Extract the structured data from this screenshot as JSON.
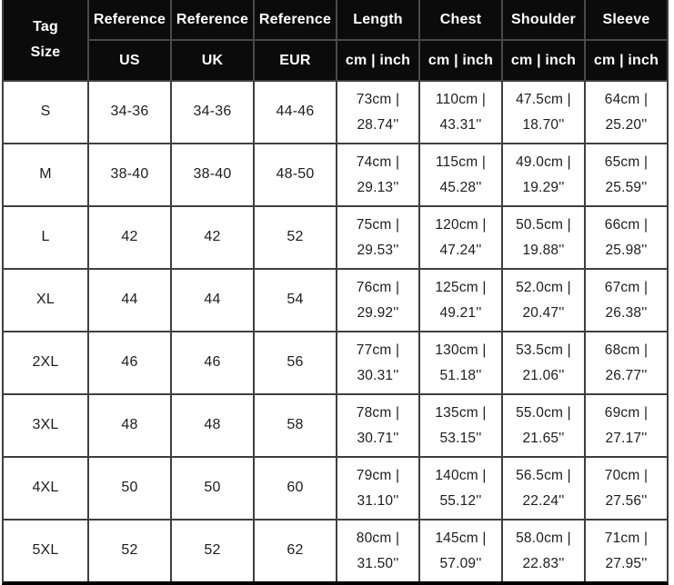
{
  "chart_data": {
    "type": "table",
    "columns": [
      "Tag Size",
      "Reference US",
      "Reference UK",
      "Reference EUR",
      "Length cm | inch",
      "Chest cm | inch",
      "Shoulder cm | inch",
      "Sleeve cm | inch"
    ],
    "row_keys": [
      "size",
      "us",
      "uk",
      "eur",
      "length",
      "chest",
      "shoulder",
      "sleeve"
    ],
    "header": {
      "tag_size": "Tag\nSize",
      "groups": [
        {
          "top": "Reference",
          "bottom": "US"
        },
        {
          "top": "Reference",
          "bottom": "UK"
        },
        {
          "top": "Reference",
          "bottom": "EUR"
        },
        {
          "top": "Length",
          "bottom": "cm | inch"
        },
        {
          "top": "Chest",
          "bottom": "cm | inch"
        },
        {
          "top": "Shoulder",
          "bottom": "cm | inch"
        },
        {
          "top": "Sleeve",
          "bottom": "cm | inch"
        }
      ]
    },
    "rows": [
      {
        "size": "S",
        "us": "34-36",
        "uk": "34-36",
        "eur": "44-46",
        "length": "73cm |\n28.74''",
        "chest": "110cm |\n43.31''",
        "shoulder": "47.5cm |\n18.70''",
        "sleeve": "64cm |\n25.20''"
      },
      {
        "size": "M",
        "us": "38-40",
        "uk": "38-40",
        "eur": "48-50",
        "length": "74cm |\n29.13''",
        "chest": "115cm |\n45.28''",
        "shoulder": "49.0cm |\n19.29''",
        "sleeve": "65cm |\n25.59''"
      },
      {
        "size": "L",
        "us": "42",
        "uk": "42",
        "eur": "52",
        "length": "75cm |\n29.53''",
        "chest": "120cm |\n47.24''",
        "shoulder": "50.5cm |\n19.88''",
        "sleeve": "66cm |\n25.98''"
      },
      {
        "size": "XL",
        "us": "44",
        "uk": "44",
        "eur": "54",
        "length": "76cm |\n29.92''",
        "chest": "125cm |\n49.21''",
        "shoulder": "52.0cm |\n20.47''",
        "sleeve": "67cm |\n26.38''"
      },
      {
        "size": "2XL",
        "us": "46",
        "uk": "46",
        "eur": "56",
        "length": "77cm |\n30.31''",
        "chest": "130cm |\n51.18''",
        "shoulder": "53.5cm |\n21.06''",
        "sleeve": "68cm |\n26.77''"
      },
      {
        "size": "3XL",
        "us": "48",
        "uk": "48",
        "eur": "58",
        "length": "78cm |\n30.71''",
        "chest": "135cm |\n53.15''",
        "shoulder": "55.0cm |\n21.65''",
        "sleeve": "69cm |\n27.17''"
      },
      {
        "size": "4XL",
        "us": "50",
        "uk": "50",
        "eur": "60",
        "length": "79cm |\n31.10''",
        "chest": "140cm |\n55.12''",
        "shoulder": "56.5cm |\n22.24''",
        "sleeve": "70cm |\n27.56''"
      },
      {
        "size": "5XL",
        "us": "52",
        "uk": "52",
        "eur": "62",
        "length": "80cm |\n31.50''",
        "chest": "145cm |\n57.09''",
        "shoulder": "58.0cm |\n22.83''",
        "sleeve": "71cm |\n27.95''"
      }
    ]
  },
  "colors": {
    "header_bg": "#0b0b0b",
    "header_text": "#ffffff",
    "body_bg": "#ffffff",
    "body_text": "#1d1d1f",
    "grid_line": "#3f3f3f",
    "header_divider": "#4a4a4a",
    "bottom_border": "#000000"
  }
}
